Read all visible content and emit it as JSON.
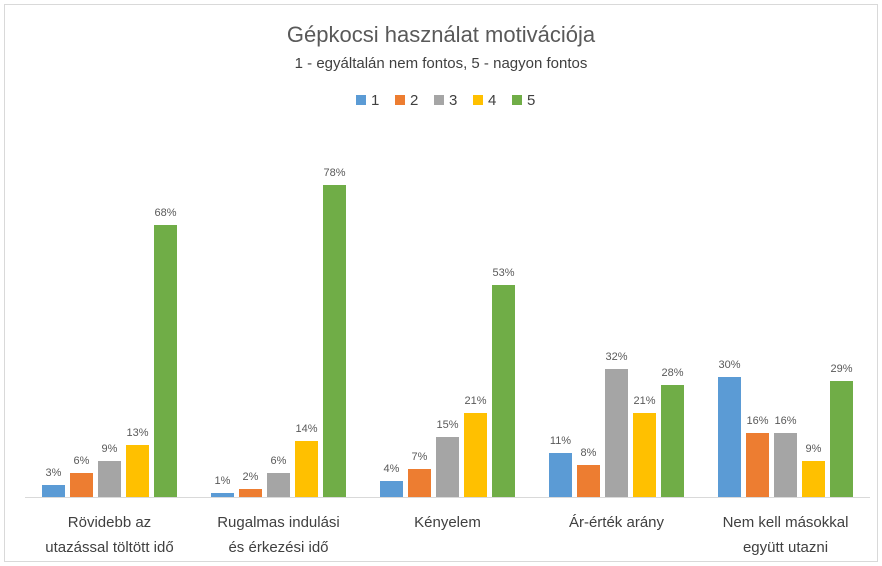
{
  "chart_data": {
    "type": "bar",
    "title": "Gépkocsi használat motivációja",
    "subtitle": "1 - egyáltalán nem fontos, 5 - nagyon fontos",
    "categories": [
      "Rövidebb az\nutazással töltött idő",
      "Rugalmas indulási\nés érkezési idő",
      "Kényelem",
      "Ár-érték arány",
      "Nem kell másokkal\negyütt utazni"
    ],
    "series": [
      {
        "name": "1",
        "color": "#5b9bd5",
        "values": [
          3,
          1,
          4,
          11,
          30
        ],
        "value_labels": [
          "3%",
          "1%",
          "4%",
          "11%",
          "30%"
        ]
      },
      {
        "name": "2",
        "color": "#ed7d31",
        "values": [
          6,
          2,
          7,
          8,
          16
        ],
        "value_labels": [
          "6%",
          "2%",
          "7%",
          "8%",
          "16%"
        ]
      },
      {
        "name": "3",
        "color": "#a5a5a5",
        "values": [
          9,
          6,
          15,
          32,
          16
        ],
        "value_labels": [
          "9%",
          "6%",
          "15%",
          "32%",
          "16%"
        ]
      },
      {
        "name": "4",
        "color": "#ffc000",
        "values": [
          13,
          14,
          21,
          21,
          9
        ],
        "value_labels": [
          "13%",
          "14%",
          "21%",
          "21%",
          "9%"
        ]
      },
      {
        "name": "5",
        "color": "#70ad47",
        "values": [
          68,
          78,
          53,
          28,
          29
        ],
        "value_labels": [
          "68%",
          "78%",
          "53%",
          "28%",
          "29%"
        ]
      }
    ],
    "legend": "top"
  }
}
